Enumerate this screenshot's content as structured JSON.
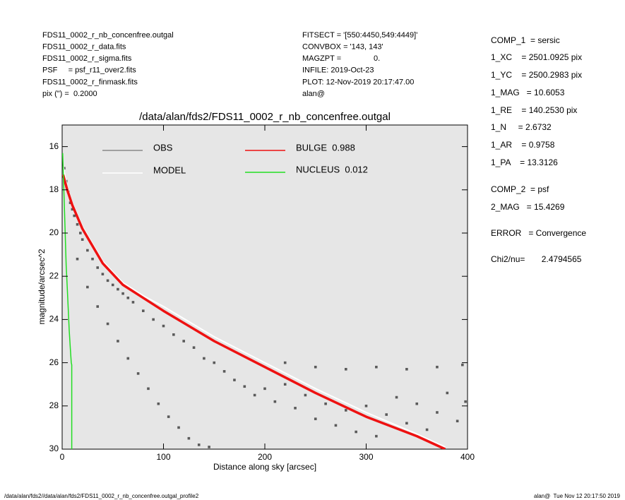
{
  "header_left": [
    "FDS11_0002_r_nb_concenfree.outgal",
    "FDS11_0002_r_data.fits",
    "FDS11_0002_r_sigma.fits",
    "PSF     = psf_r11_over2.fits",
    "FDS11_0002_r_finmask.fits",
    "pix (\") =  0.2000"
  ],
  "header_middle": [
    "FITSECT = '[550:4450,549:4449]'",
    "CONVBOX = '143, 143'",
    "MAGZPT =               0.",
    "INFILE: 2019-Oct-23",
    "PLOT: 12-Nov-2019 20:17:47.00",
    "alan@"
  ],
  "header_right": [
    "COMP_1  = sersic",
    "1_XC    = 2501.0925 pix",
    "1_YC    = 2500.2983 pix",
    "1_MAG   = 10.6053",
    "1_RE    = 140.2530 pix",
    "1_N     = 2.6732",
    "1_AR    = 0.9758",
    "1_PA    = 13.3126",
    "COMP_2  = psf",
    "2_MAG   = 15.4269",
    "ERROR   = Convergence",
    "Chi2/nu=       2.4794565"
  ],
  "footer_left": "/data/alan/fds2//data/alan/fds2/FDS11_0002_r_nb_concenfree.outgal_profile2",
  "footer_right": "alan@  Tue Nov 12 20:17:50 2019",
  "chart_data": {
    "type": "scatter",
    "title": "/data/alan/fds2/FDS11_0002_r_nb_concenfree.outgal",
    "x_label": "Distance along sky [arcsec]",
    "y_label": "magnitude/arcsec^2",
    "xlim": [
      0,
      400
    ],
    "ylim": [
      30,
      15
    ],
    "xticks": [
      0,
      100,
      200,
      300,
      400
    ],
    "yticks": [
      16,
      18,
      20,
      22,
      24,
      26,
      28,
      30
    ],
    "series": [
      {
        "name": "OBS",
        "type": "scatter",
        "color": "#5a5a5a",
        "x": [
          2,
          4,
          6,
          8,
          10,
          12,
          15,
          18,
          20,
          25,
          30,
          35,
          40,
          45,
          50,
          55,
          60,
          65,
          70,
          80,
          90,
          100,
          110,
          120,
          130,
          140,
          150,
          160,
          170,
          180,
          190,
          200,
          210,
          220,
          230,
          240,
          250,
          260,
          270,
          280,
          290,
          300,
          310,
          320,
          330,
          340,
          350,
          360,
          370,
          380,
          390,
          398,
          15,
          25,
          35,
          45,
          55,
          65,
          75,
          85,
          95,
          105,
          115,
          125,
          135,
          145,
          220,
          250,
          280,
          310,
          340,
          370,
          395
        ],
        "values": [
          17.0,
          17.6,
          18.1,
          18.6,
          18.9,
          19.2,
          19.6,
          20.0,
          20.3,
          20.8,
          21.2,
          21.6,
          21.9,
          22.2,
          22.4,
          22.6,
          22.8,
          23.0,
          23.2,
          23.6,
          24.0,
          24.3,
          24.7,
          25.0,
          25.3,
          25.8,
          26.0,
          26.4,
          26.8,
          27.1,
          27.5,
          27.2,
          27.8,
          27.0,
          28.1,
          27.5,
          28.6,
          27.9,
          28.9,
          28.2,
          29.2,
          28.0,
          29.4,
          28.4,
          27.6,
          28.8,
          27.9,
          29.1,
          28.3,
          27.4,
          28.7,
          27.8,
          21.2,
          22.5,
          23.4,
          24.2,
          25.0,
          25.8,
          26.5,
          27.2,
          27.9,
          28.5,
          29.0,
          29.5,
          29.8,
          29.9,
          26.0,
          26.2,
          26.3,
          26.2,
          26.3,
          26.2,
          26.1
        ]
      },
      {
        "name": "MODEL",
        "type": "line",
        "color": "#ffffff",
        "x": [
          1,
          5,
          10,
          20,
          40,
          60,
          80,
          100,
          150,
          200,
          250,
          300,
          350,
          378
        ],
        "values": [
          16.9,
          17.9,
          18.6,
          19.7,
          21.3,
          22.3,
          22.9,
          23.4,
          24.8,
          26.0,
          27.2,
          28.3,
          29.3,
          29.9
        ]
      },
      {
        "name": "BULGE  0.988",
        "type": "line",
        "color": "#ee1111",
        "x": [
          1,
          5,
          10,
          20,
          40,
          60,
          80,
          100,
          150,
          200,
          250,
          300,
          350,
          378
        ],
        "values": [
          17.3,
          18.0,
          18.7,
          19.8,
          21.4,
          22.4,
          23.0,
          23.6,
          25.0,
          26.2,
          27.4,
          28.5,
          29.4,
          30
        ]
      },
      {
        "name": "NUCLEUS  0.012",
        "type": "line",
        "color": "#22dd22",
        "x": [
          0.5,
          1,
          2,
          3,
          4,
          5,
          6,
          7,
          8,
          9,
          9.5,
          9.5
        ],
        "values": [
          16.3,
          17,
          18.5,
          20,
          21.5,
          22.5,
          23.5,
          24.5,
          25.3,
          26,
          26.1,
          30
        ]
      }
    ]
  }
}
